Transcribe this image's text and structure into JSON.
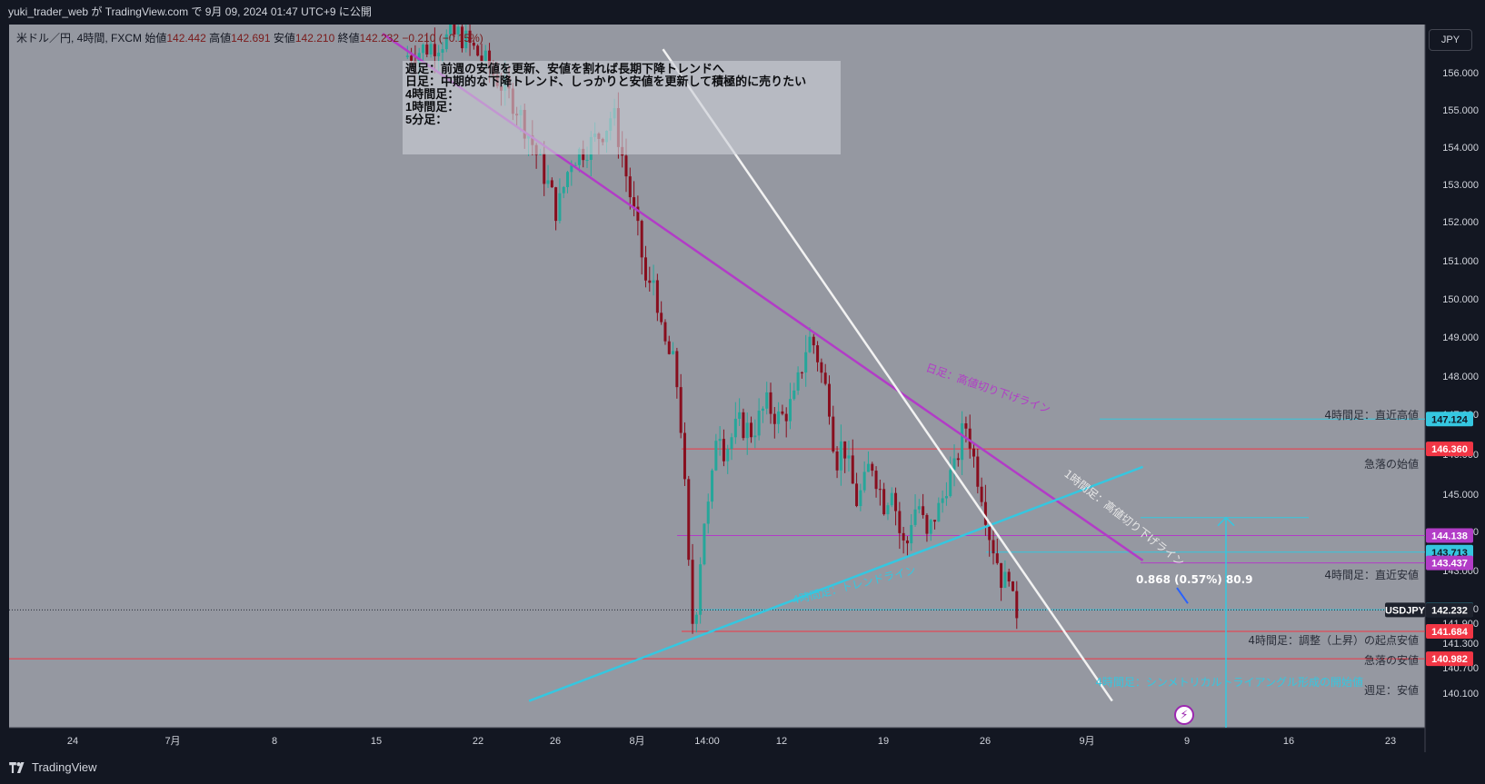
{
  "header": {
    "publish_line": "yuki_trader_web が TradingView.com で 9月 09, 2024 01:47 UTC+9 に公開"
  },
  "footer": {
    "brand": "TradingView"
  },
  "currency_button": "JPY",
  "legend": {
    "symbol": "米ドル／円, 4時間, FXCM",
    "open_label": "始値",
    "open": "142.442",
    "high_label": "高値",
    "high": "142.691",
    "low_label": "安値",
    "low": "142.210",
    "close_label": "終値",
    "close": "142.232",
    "change": "−0.210 (−0.15%)"
  },
  "note": [
    "週足：前週の安値を更新、安値を割れば長期下降トレンドへ",
    "日足：中期的な下降トレンド、しっかりと安値を更新して積極的に売りたい",
    "4時間足：",
    "1時間足：",
    "5分足："
  ],
  "colors": {
    "plot_bg": "#9598a1",
    "up": "#26a69a",
    "down": "#880e1e",
    "purple": "#b23cc7",
    "cyan": "#35c7e0",
    "white_line": "#f2f2f2",
    "red_line": "#f23645"
  },
  "chart_data": {
    "type": "candlestick",
    "symbol": "USDJPY",
    "timeframe": "4時間",
    "y_axis": {
      "range": [
        139.9,
        156.6
      ],
      "ticks": [
        "156.000",
        "155.000",
        "154.000",
        "153.000",
        "152.000",
        "151.000",
        "150.000",
        "149.000",
        "148.000",
        "147.000",
        "146.000",
        "145.000",
        "144.000",
        "143.000",
        "142.000",
        "141.900",
        "141.300",
        "140.700",
        "140.100"
      ]
    },
    "x_axis": {
      "ticks": [
        "24",
        "7月",
        "8",
        "15",
        "22",
        "26",
        "8月",
        "14:00",
        "12",
        "19",
        "26",
        "9月",
        "9",
        "16",
        "23"
      ]
    },
    "ohlc_path": [
      [
        0.0,
        156.4
      ],
      [
        4.0,
        157.0
      ],
      [
        6.0,
        156.2
      ],
      [
        8.0,
        155.2
      ],
      [
        9.0,
        154.4
      ],
      [
        10.5,
        153.0
      ],
      [
        11.0,
        152.4
      ],
      [
        12.0,
        153.8
      ],
      [
        13.5,
        154.2
      ],
      [
        14.5,
        154.6
      ],
      [
        15.0,
        155.0
      ],
      [
        15.5,
        154.2
      ],
      [
        16.5,
        152.4
      ],
      [
        17.0,
        151.5
      ],
      [
        17.5,
        150.3
      ],
      [
        18.0,
        150.8
      ],
      [
        18.5,
        149.2
      ],
      [
        19.5,
        148.4
      ],
      [
        20.0,
        146.5
      ],
      [
        20.4,
        143.5
      ],
      [
        20.7,
        141.9
      ],
      [
        21.0,
        142.4
      ],
      [
        21.5,
        144.5
      ],
      [
        22.0,
        145.0
      ],
      [
        22.5,
        147.2
      ],
      [
        23.0,
        146.3
      ],
      [
        24.0,
        147.0
      ],
      [
        25.0,
        146.8
      ],
      [
        26.0,
        147.5
      ],
      [
        27.0,
        147.1
      ],
      [
        28.0,
        147.6
      ],
      [
        29.0,
        149.2
      ],
      [
        29.5,
        149.0
      ],
      [
        30.0,
        148.2
      ],
      [
        30.5,
        147.6
      ],
      [
        31.0,
        146.0
      ],
      [
        31.5,
        146.6
      ],
      [
        32.0,
        145.7
      ],
      [
        32.5,
        145.0
      ],
      [
        33.0,
        145.4
      ],
      [
        33.5,
        146.1
      ],
      [
        34.0,
        145.5
      ],
      [
        34.5,
        144.9
      ],
      [
        35.0,
        145.5
      ],
      [
        35.5,
        144.3
      ],
      [
        36.0,
        143.7
      ],
      [
        36.5,
        144.8
      ],
      [
        37.0,
        144.9
      ],
      [
        37.5,
        144.0
      ],
      [
        38.0,
        144.6
      ],
      [
        38.5,
        144.9
      ],
      [
        39.0,
        145.6
      ],
      [
        39.5,
        145.8
      ],
      [
        40.0,
        146.7
      ],
      [
        40.4,
        147.0
      ],
      [
        40.7,
        146.4
      ],
      [
        41.0,
        145.9
      ],
      [
        41.5,
        145.2
      ],
      [
        42.0,
        144.2
      ],
      [
        42.5,
        143.6
      ],
      [
        43.0,
        142.8
      ],
      [
        43.4,
        143.3
      ],
      [
        43.7,
        142.3
      ],
      [
        44.0,
        142.2
      ]
    ],
    "lines": [
      {
        "label": "日足：高値切り下げライン",
        "color": "purple",
        "from": [
          -1.5,
          157.0
        ],
        "to": [
          53.0,
          143.5
        ]
      },
      {
        "label": "4時間足：トレンドライン",
        "color": "cyan",
        "from": [
          9.0,
          139.9
        ],
        "to": [
          53.0,
          145.9
        ]
      },
      {
        "label": "1時間足：高値切り下げライン",
        "color": "white",
        "from": [
          18.6,
          156.6
        ],
        "to": [
          50.8,
          139.9
        ]
      }
    ],
    "levels": [
      {
        "price": "147.124",
        "label": "4時間足：直近高値",
        "color": "cyan"
      },
      {
        "price": "146.360",
        "label": "急落の始値",
        "color": "red"
      },
      {
        "price": "144.138",
        "label": "",
        "color": "purple"
      },
      {
        "price": "143.713",
        "label": "",
        "color": "cyan"
      },
      {
        "price": "143.437",
        "label": "4時間足：直近安値",
        "color": "purple"
      },
      {
        "price": "142.239",
        "label": "",
        "color": "cyan"
      },
      {
        "price": "141.684",
        "label": "急落の安値",
        "color": "red"
      },
      {
        "price": "140.982",
        "label": "週足：安値",
        "color": "red"
      }
    ],
    "price_labels": [
      {
        "price": "147.124",
        "color": "cyan"
      },
      {
        "price": "146.360",
        "color": "red"
      },
      {
        "price": "144.138",
        "color": "purple"
      },
      {
        "price": "143.713",
        "color": "cyan"
      },
      {
        "price": "143.437",
        "color": "purple"
      },
      {
        "price": "142.239",
        "color": "cyan"
      },
      {
        "price": "141.684",
        "color": "red"
      },
      {
        "price": "140.982",
        "color": "red"
      }
    ],
    "current": {
      "symbol": "USDJPY",
      "price": "142.232"
    },
    "annotations": [
      {
        "text": "4時間足：調整（上昇）の起点安値"
      },
      {
        "text": "4時間足：シンメトリカルトライアングル形成の開始値"
      },
      {
        "text": "0.868 (0.57%) 80.9"
      }
    ]
  }
}
